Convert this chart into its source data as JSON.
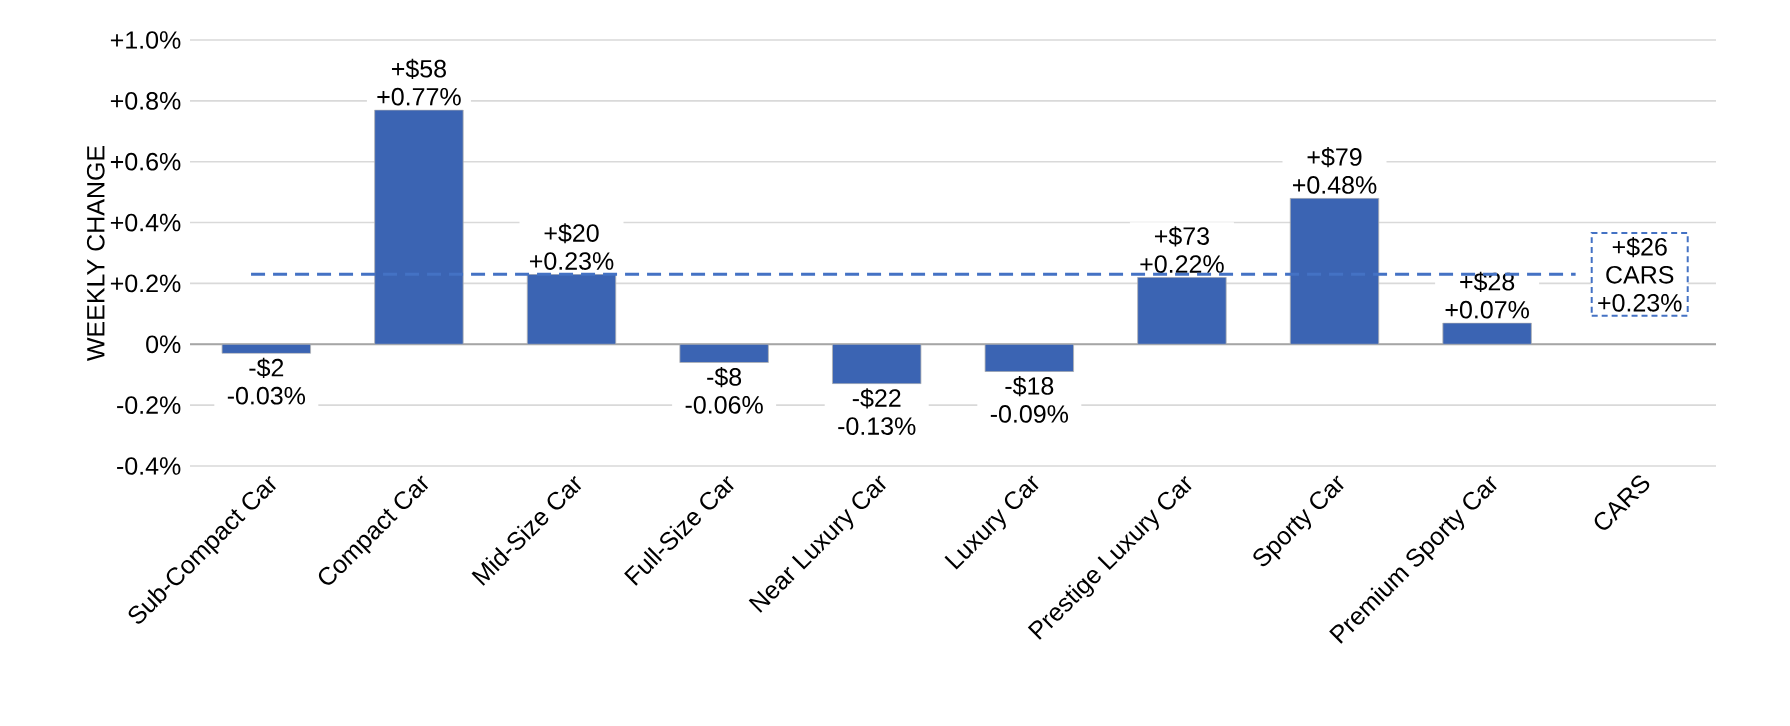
{
  "chart_data": {
    "type": "bar",
    "ylabel": "WEEKLY CHANGE",
    "categories": [
      "Sub-Compact Car",
      "Compact Car",
      "Mid-Size Car",
      "Full-Size Car",
      "Near Luxury Car",
      "Luxury Car",
      "Prestige Luxury Car",
      "Sporty Car",
      "Premium Sporty Car",
      "CARS"
    ],
    "values": [
      -0.03,
      0.77,
      0.23,
      -0.06,
      -0.13,
      -0.09,
      0.22,
      0.48,
      0.07,
      null
    ],
    "value_labels": [
      "-$2 -0.03%",
      "+$58 +0.77%",
      "+$20 +0.23%",
      "-$8 -0.06%",
      "-$22 -0.13%",
      "-$18 -0.09%",
      "+$73 +0.22%",
      "+$79 +0.48%",
      "+$28 +0.07%",
      null
    ],
    "color": "#3b64b3",
    "ylim": [
      -0.4,
      1.0
    ],
    "yticks": [
      {
        "value": -0.4,
        "label": "-0.4%"
      },
      {
        "value": -0.2,
        "label": "-0.2%"
      },
      {
        "value": 0,
        "label": "0%"
      },
      {
        "value": 0.2,
        "label": "+0.2%"
      },
      {
        "value": 0.4,
        "label": "+0.4%"
      },
      {
        "value": 0.6,
        "label": "+0.6%"
      },
      {
        "value": 0.8,
        "label": "+0.8%"
      },
      {
        "value": 1.0,
        "label": "+1.0%"
      }
    ],
    "ref_lines": [
      {
        "axis": "y",
        "value": 0.23,
        "label": "+$26 CARS +0.23%",
        "color": "#4472c4",
        "line_style": "dashed"
      }
    ],
    "grid": "y"
  }
}
